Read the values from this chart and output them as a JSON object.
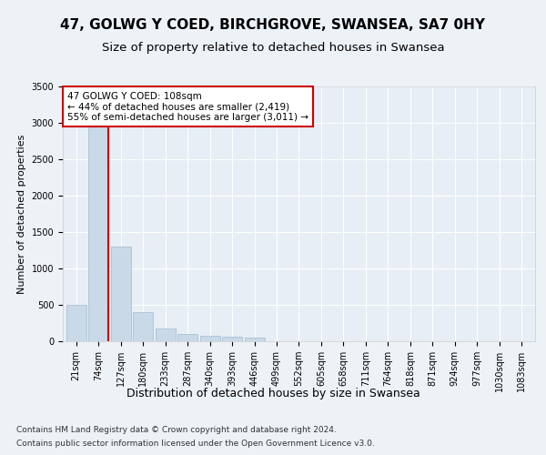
{
  "title": "47, GOLWG Y COED, BIRCHGROVE, SWANSEA, SA7 0HY",
  "subtitle": "Size of property relative to detached houses in Swansea",
  "xlabel": "Distribution of detached houses by size in Swansea",
  "ylabel": "Number of detached properties",
  "footer1": "Contains HM Land Registry data © Crown copyright and database right 2024.",
  "footer2": "Contains public sector information licensed under the Open Government Licence v3.0.",
  "annotation_line1": "47 GOLWG Y COED: 108sqm",
  "annotation_line2": "← 44% of detached houses are smaller (2,419)",
  "annotation_line3": "55% of semi-detached houses are larger (3,011) →",
  "bar_color": "#c9d9e8",
  "bar_edgecolor": "#a0b8d0",
  "redline_color": "#cc0000",
  "annotation_edgecolor": "#cc0000",
  "fig_bg_color": "#edf2f7",
  "plot_bg_color": "#e8eef5",
  "bins": [
    "21sqm",
    "74sqm",
    "127sqm",
    "180sqm",
    "233sqm",
    "287sqm",
    "340sqm",
    "393sqm",
    "446sqm",
    "499sqm",
    "552sqm",
    "605sqm",
    "658sqm",
    "711sqm",
    "764sqm",
    "818sqm",
    "871sqm",
    "924sqm",
    "977sqm",
    "1030sqm",
    "1083sqm"
  ],
  "values": [
    500,
    2950,
    1300,
    400,
    175,
    100,
    75,
    60,
    50,
    5,
    0,
    0,
    0,
    0,
    0,
    0,
    0,
    0,
    0,
    0,
    0
  ],
  "ylim": [
    0,
    3500
  ],
  "yticks": [
    0,
    500,
    1000,
    1500,
    2000,
    2500,
    3000,
    3500
  ],
  "redline_x": 1.45,
  "title_fontsize": 11,
  "subtitle_fontsize": 9.5,
  "xlabel_fontsize": 9,
  "ylabel_fontsize": 8,
  "tick_fontsize": 7,
  "annotation_fontsize": 7.5,
  "footer_fontsize": 6.5
}
